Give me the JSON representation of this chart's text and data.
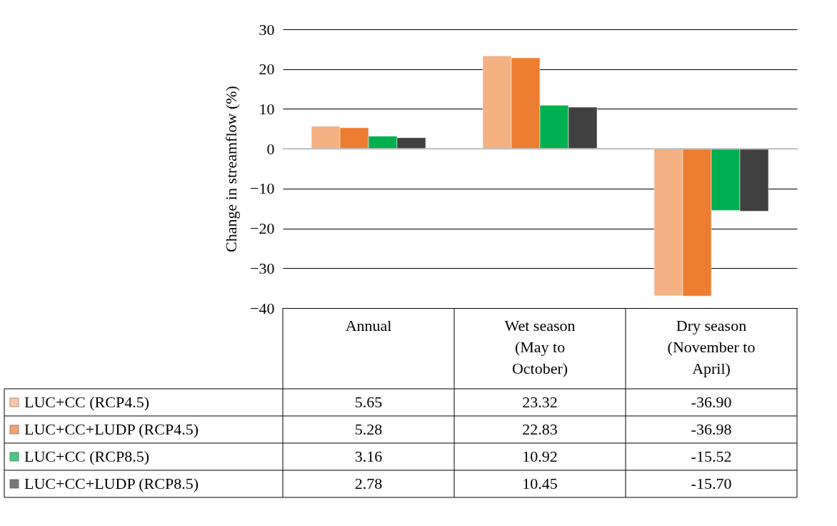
{
  "chart_data": {
    "type": "bar",
    "ylabel": "Change in streamflow (%)",
    "categories": [
      "Annual",
      "Wet season (May to October)",
      "Dry season (November to April)"
    ],
    "series": [
      {
        "name": "LUC+CC (RCP4.5)",
        "color": "#f4b183",
        "values": [
          5.65,
          23.32,
          -36.9
        ]
      },
      {
        "name": "LUC+CC+LUDP (RCP4.5)",
        "color": "#ed7d31",
        "values": [
          5.28,
          22.83,
          -36.98
        ]
      },
      {
        "name": "LUC+CC (RCP8.5)",
        "color": "#00b050",
        "values": [
          3.16,
          10.92,
          -15.52
        ]
      },
      {
        "name": "LUC+CC+LUDP (RCP8.5)",
        "color": "#404040",
        "values": [
          2.78,
          10.45,
          -15.7
        ]
      }
    ],
    "value_labels": [
      [
        "5.65",
        "23.32",
        "-36.90"
      ],
      [
        "5.28",
        "22.83",
        "-36.98"
      ],
      [
        "3.16",
        "10.92",
        "-15.52"
      ],
      [
        "2.78",
        "10.45",
        "-15.70"
      ]
    ],
    "ylim": [
      -40,
      30
    ],
    "yticks": [
      -40,
      -30,
      -20,
      -10,
      0,
      10,
      20,
      30
    ],
    "grid": "y",
    "legend": "bottom"
  }
}
